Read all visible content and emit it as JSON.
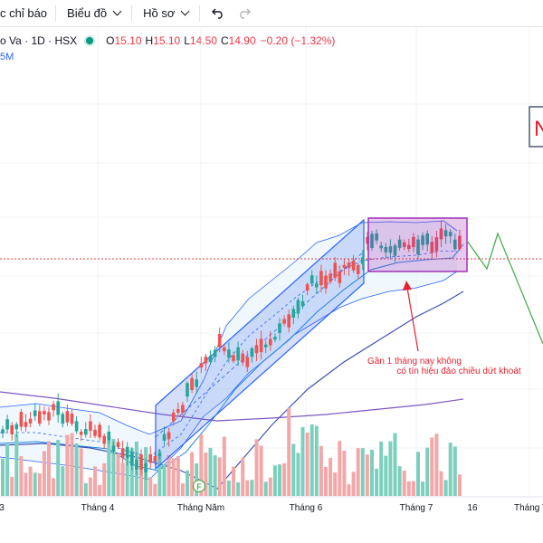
{
  "toolbar": {
    "indicators_label": "c chỉ báo",
    "chart_label": "Biểu đồ",
    "profile_label": "Hồ sơ",
    "undo_icon": "undo-icon",
    "redo_icon": "redo-icon"
  },
  "legend": {
    "symbol": "o Va · 1D · HSX",
    "status_icon": "market-open-dot",
    "o_label": "O",
    "o_value": "15.10",
    "h_label": "H",
    "h_value": "15.10",
    "l_label": "L",
    "l_value": "14.50",
    "c_label": "C",
    "c_value": "14.90",
    "change": "−0.20 (−1.32%)"
  },
  "volume_label": "5M",
  "annotation": {
    "line1": "Gần 1 tháng nay không",
    "line2": "có tín hiệu đảo chiều dứt khoát",
    "color": "#e8202f"
  },
  "partial_box": {
    "letter": "N"
  },
  "time_axis": {
    "labels": [
      "3",
      "Tháng 4",
      "Tháng Năm",
      "Tháng 6",
      "Tháng 7",
      "16",
      "Tháng T"
    ],
    "event_marker": "F"
  },
  "colors": {
    "up": "#26a69a",
    "down": "#ef5350",
    "vol_up": "#7ccfbd",
    "vol_down": "#f4a7a8",
    "channel": "#2962ff",
    "range_box": "#9c27b0",
    "projection": "#4caf50",
    "price_line": "#f23645"
  }
}
